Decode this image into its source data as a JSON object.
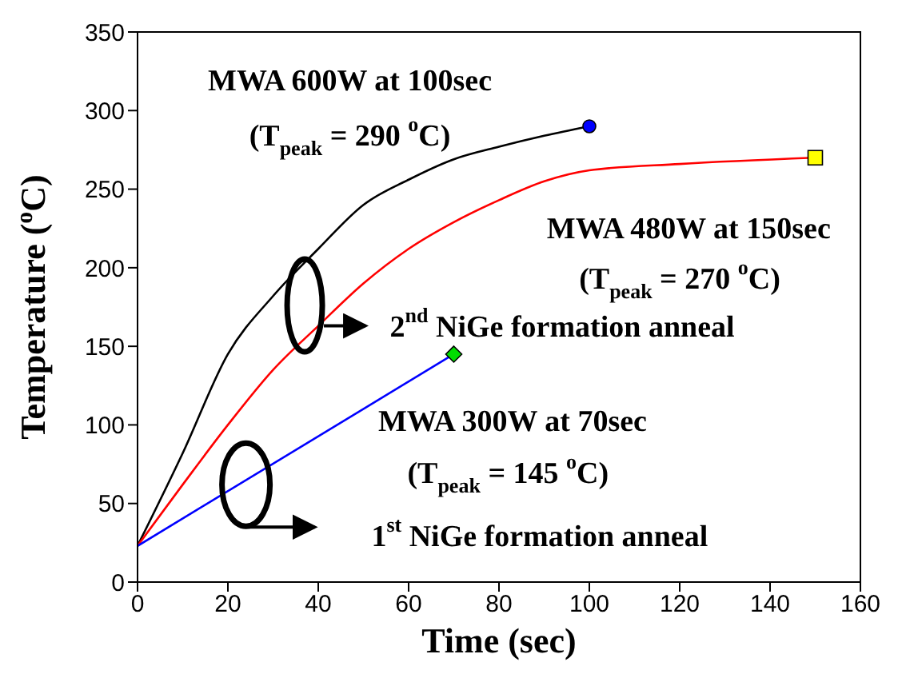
{
  "chart_data": {
    "type": "line",
    "xlabel": "Time (sec)",
    "ylabel": "Temperature ($^{o}$C)",
    "xlim": [
      0,
      160
    ],
    "ylim": [
      0,
      350
    ],
    "xticks": [
      0,
      20,
      40,
      60,
      80,
      100,
      120,
      140,
      160
    ],
    "yticks": [
      0,
      50,
      100,
      150,
      200,
      250,
      300,
      350
    ],
    "line_style": "solid",
    "series": [
      {
        "color": "#000000",
        "x": [
          0,
          10,
          20,
          30,
          40,
          50,
          60,
          70,
          80,
          90,
          100
        ],
        "values": [
          23,
          82,
          145,
          182,
          212,
          240,
          256,
          269,
          277,
          284,
          290
        ]
      },
      {
        "color": "#ff0000",
        "x": [
          0,
          10,
          20,
          30,
          40,
          50,
          60,
          70,
          80,
          90,
          100,
          120,
          150
        ],
        "values": [
          23,
          62,
          100,
          135,
          163,
          190,
          212,
          229,
          243,
          255,
          262,
          266,
          270
        ]
      },
      {
        "color": "#0000ff",
        "x": [
          0,
          70
        ],
        "values": [
          23,
          145
        ]
      },
      {
        "type": "scatter",
        "marker": "circle",
        "color": "#0000ff",
        "x": [
          100
        ],
        "values": [
          290
        ]
      },
      {
        "type": "scatter",
        "marker": "square",
        "color": "#ffff00",
        "x": [
          150
        ],
        "values": [
          270
        ]
      },
      {
        "type": "scatter",
        "marker": "diamond",
        "color": "#00dd00",
        "x": [
          70
        ],
        "values": [
          145
        ]
      }
    ],
    "annotations": [
      "MWA 600W at 100sec",
      "(T$_{peak}$ = 290 $^{o}$C)",
      "MWA 480W at 150sec",
      "(T$_{peak}$ = 270 $^{o}$C)",
      "2$^{nd}$ NiGe formation anneal",
      "MWA 300W at 70sec",
      "(T$_{peak}$ = 145 $^{o}$C)",
      "1$^{st}$ NiGe formation anneal"
    ]
  }
}
